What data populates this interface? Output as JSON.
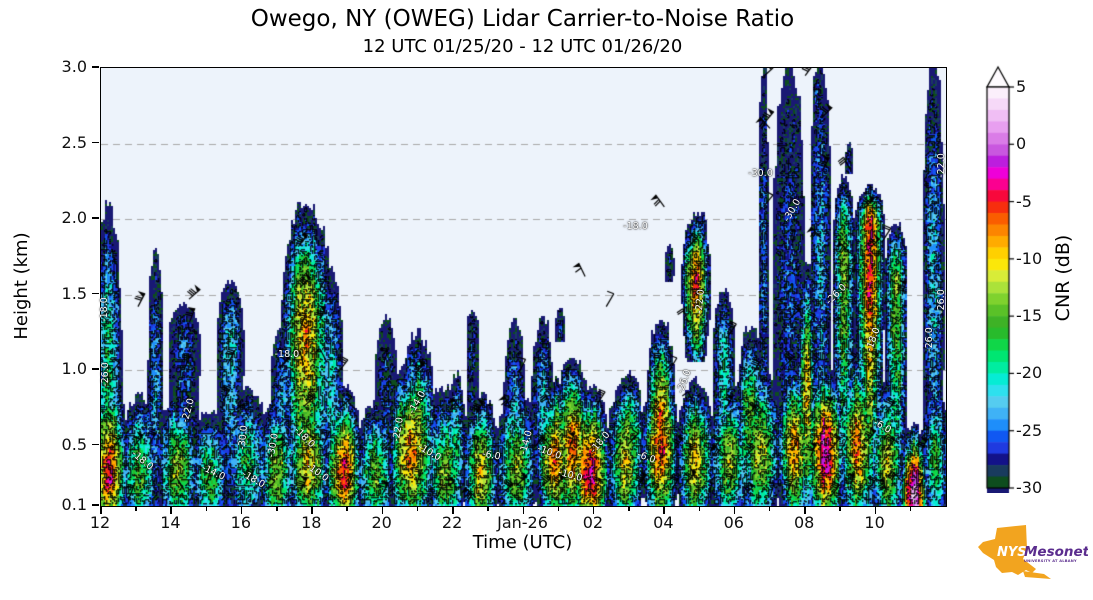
{
  "header": {
    "title": "Owego, NY (OWEG) Lidar Carrier-to-Noise Ratio",
    "subtitle": "12 UTC 01/25/20 - 12 UTC 01/26/20"
  },
  "axes": {
    "x": {
      "label": "Time (UTC)",
      "range_hours_from_start": [
        0,
        24
      ],
      "ticks": [
        {
          "t": 0,
          "label": "12"
        },
        {
          "t": 2,
          "label": "14"
        },
        {
          "t": 4,
          "label": "16"
        },
        {
          "t": 6,
          "label": "18"
        },
        {
          "t": 8,
          "label": "20"
        },
        {
          "t": 10,
          "label": "22"
        },
        {
          "t": 12,
          "label": "Jan-26"
        },
        {
          "t": 14,
          "label": "02"
        },
        {
          "t": 16,
          "label": "04"
        },
        {
          "t": 18,
          "label": "06"
        },
        {
          "t": 20,
          "label": "08"
        },
        {
          "t": 22,
          "label": "10"
        }
      ],
      "minor_ticks_every_hours": 1
    },
    "y": {
      "label": "Height (km)",
      "range_km": [
        0.1,
        3.0
      ],
      "ticks": [
        {
          "km": 3.0,
          "label": "3.0"
        },
        {
          "km": 2.5,
          "label": "2.5"
        },
        {
          "km": 2.0,
          "label": "2.0"
        },
        {
          "km": 1.5,
          "label": "1.5"
        },
        {
          "km": 1.0,
          "label": "1.0"
        },
        {
          "km": 0.5,
          "label": "0.5"
        },
        {
          "km": 0.1,
          "label": "0.1"
        }
      ],
      "gridlines_km": [
        0.5,
        1.0,
        1.5,
        2.0,
        2.5
      ]
    }
  },
  "colorbar": {
    "label": "CNR (dB)",
    "min": -30,
    "max": 5,
    "extend_max_arrow": true,
    "ticks": [
      5,
      0,
      -5,
      -10,
      -15,
      -20,
      -25,
      -30
    ]
  },
  "chart_data": {
    "type": "heatmap",
    "quantity": "Lidar carrier-to-noise ratio (dB) vs time and height, with wind barbs and labeled CNR contours",
    "background": "#edf3fb",
    "gridline_color": "#a8a8a8",
    "colormap": [
      {
        "v": -30,
        "c": "#191974"
      },
      {
        "v": -29,
        "c": "#0e4d1e"
      },
      {
        "v": -28,
        "c": "#193b5e"
      },
      {
        "v": -27,
        "c": "#131289"
      },
      {
        "v": -26,
        "c": "#1f3ae0"
      },
      {
        "v": -25,
        "c": "#1058f2"
      },
      {
        "v": -24,
        "c": "#1e8efa"
      },
      {
        "v": -23,
        "c": "#3fb2f6"
      },
      {
        "v": -22,
        "c": "#55ccf0"
      },
      {
        "v": -21,
        "c": "#2ee0ee"
      },
      {
        "v": -20,
        "c": "#06ecd4"
      },
      {
        "v": -19,
        "c": "#00eda0"
      },
      {
        "v": -18,
        "c": "#00e672"
      },
      {
        "v": -17,
        "c": "#10d648"
      },
      {
        "v": -16,
        "c": "#28bb2c"
      },
      {
        "v": -15,
        "c": "#3eb226"
      },
      {
        "v": -14,
        "c": "#5ac128"
      },
      {
        "v": -13,
        "c": "#7fd22e"
      },
      {
        "v": -12,
        "c": "#abe23a"
      },
      {
        "v": -11,
        "c": "#d8ec38"
      },
      {
        "v": -10,
        "c": "#fbe70a"
      },
      {
        "v": -9,
        "c": "#ffd000"
      },
      {
        "v": -8,
        "c": "#ffab00"
      },
      {
        "v": -7,
        "c": "#fc8500"
      },
      {
        "v": -6,
        "c": "#fa5d00"
      },
      {
        "v": -5,
        "c": "#f72e0e"
      },
      {
        "v": -4,
        "c": "#f8083c"
      },
      {
        "v": -3,
        "c": "#fb0090"
      },
      {
        "v": -2,
        "c": "#ee00d8"
      },
      {
        "v": -1,
        "c": "#bc1ede"
      },
      {
        "v": 0,
        "c": "#c957df"
      },
      {
        "v": 1,
        "c": "#da7ce7"
      },
      {
        "v": 2,
        "c": "#e89ff0"
      },
      {
        "v": 3,
        "c": "#f0bef4"
      },
      {
        "v": 4,
        "c": "#f6d9f8"
      },
      {
        "v": 5,
        "c": "#fbeffb"
      },
      {
        "v": 6,
        "c": "#fefbfe"
      }
    ],
    "features": [
      {
        "t": 0.25,
        "w": 0.45,
        "top": 0.95,
        "core": -3,
        "ch": 0.3
      },
      {
        "t": 1.1,
        "w": 0.5,
        "top": 0.8,
        "core": -14,
        "ch": 0.3
      },
      {
        "t": 2.2,
        "w": 0.55,
        "top": 0.8,
        "core": -12,
        "ch": 0.35
      },
      {
        "t": 3.1,
        "w": 0.5,
        "top": 0.7,
        "core": -15,
        "ch": 0.3
      },
      {
        "t": 4.15,
        "w": 0.55,
        "top": 0.85,
        "core": -17,
        "ch": 0.4
      },
      {
        "t": 5.0,
        "w": 0.5,
        "top": 0.8,
        "core": -12,
        "ch": 0.3
      },
      {
        "t": 5.9,
        "w": 0.55,
        "top": 0.9,
        "core": -9,
        "ch": 0.35
      },
      {
        "t": 6.9,
        "w": 0.5,
        "top": 0.85,
        "core": -4,
        "ch": 0.3
      },
      {
        "t": 7.8,
        "w": 0.5,
        "top": 0.75,
        "core": -14,
        "ch": 0.3
      },
      {
        "t": 8.8,
        "w": 0.6,
        "top": 1.0,
        "core": -7,
        "ch": 0.45
      },
      {
        "t": 9.8,
        "w": 0.5,
        "top": 0.85,
        "core": -13,
        "ch": 0.3
      },
      {
        "t": 10.8,
        "w": 0.5,
        "top": 0.8,
        "core": -10,
        "ch": 0.3
      },
      {
        "t": 11.8,
        "w": 0.55,
        "top": 0.85,
        "core": -12,
        "ch": 0.35
      },
      {
        "t": 12.9,
        "w": 0.55,
        "top": 0.9,
        "core": -6,
        "ch": 0.4
      },
      {
        "t": 13.9,
        "w": 0.55,
        "top": 0.85,
        "core": -2,
        "ch": 0.3
      },
      {
        "t": 14.9,
        "w": 0.5,
        "top": 0.9,
        "core": -10,
        "ch": 0.4
      },
      {
        "t": 15.9,
        "w": 0.5,
        "top": 0.95,
        "core": -5,
        "ch": 0.5
      },
      {
        "t": 16.9,
        "w": 0.5,
        "top": 0.9,
        "core": -9,
        "ch": 0.4
      },
      {
        "t": 17.85,
        "w": 0.5,
        "top": 0.9,
        "core": -12,
        "ch": 0.4
      },
      {
        "t": 18.75,
        "w": 0.5,
        "top": 1.0,
        "core": -10,
        "ch": 0.45
      },
      {
        "t": 19.7,
        "w": 0.45,
        "top": 1.0,
        "core": -7,
        "ch": 0.5
      },
      {
        "t": 20.6,
        "w": 0.5,
        "top": 1.0,
        "core": -1,
        "ch": 0.45
      },
      {
        "t": 21.5,
        "w": 0.5,
        "top": 1.05,
        "core": -6,
        "ch": 0.5
      },
      {
        "t": 22.35,
        "w": 0.45,
        "top": 0.9,
        "core": -11,
        "ch": 0.4
      },
      {
        "t": 23.1,
        "w": 0.4,
        "top": 0.6,
        "core": 3,
        "ch": 0.15
      },
      {
        "t": 23.7,
        "w": 0.35,
        "top": 0.9,
        "core": -16,
        "ch": 0.4
      },
      {
        "t": 0.22,
        "w": 0.35,
        "top": 2.02,
        "core": -17,
        "ch": 1.0
      },
      {
        "t": 1.55,
        "w": 0.2,
        "top": 1.78,
        "core": -22,
        "ch": 0.9
      },
      {
        "t": 2.35,
        "w": 0.4,
        "top": 1.42,
        "core": -25,
        "ch": 1.2
      },
      {
        "t": 3.7,
        "w": 0.35,
        "top": 1.56,
        "core": -21,
        "ch": 1.2
      },
      {
        "t": 5.15,
        "w": 0.3,
        "top": 1.28,
        "core": -22,
        "ch": 0.8
      },
      {
        "t": 5.85,
        "w": 0.65,
        "top": 2.05,
        "core": -8,
        "ch": 1.28
      },
      {
        "t": 6.55,
        "w": 0.3,
        "top": 1.62,
        "core": -20,
        "ch": 1.0
      },
      {
        "t": 8.1,
        "w": 0.28,
        "top": 1.32,
        "core": -26,
        "ch": 0.95
      },
      {
        "t": 9.0,
        "w": 0.5,
        "top": 1.2,
        "core": -11,
        "ch": 0.5
      },
      {
        "t": 10.1,
        "w": 0.25,
        "top": 0.95,
        "core": -18,
        "ch": 0.5
      },
      {
        "t": 10.55,
        "w": 0.16,
        "top": 1.38,
        "core": -27,
        "ch": 1.25
      },
      {
        "t": 11.75,
        "w": 0.28,
        "top": 1.3,
        "core": -22,
        "ch": 0.8
      },
      {
        "t": 12.55,
        "w": 0.28,
        "top": 1.32,
        "core": -21,
        "ch": 0.8
      },
      {
        "t": 13.4,
        "w": 0.45,
        "top": 1.05,
        "core": -5,
        "ch": 0.5
      },
      {
        "t": 15.0,
        "w": 0.4,
        "top": 0.95,
        "core": -12,
        "ch": 0.5
      },
      {
        "t": 15.9,
        "w": 0.4,
        "top": 1.3,
        "core": -6,
        "ch": 0.65
      },
      {
        "t": 16.9,
        "w": 0.38,
        "top": 2.0,
        "core": -5,
        "ch": 1.6,
        "b": 1.05
      },
      {
        "t": 17.7,
        "w": 0.28,
        "top": 1.5,
        "core": -19,
        "ch": 1.1
      },
      {
        "t": 18.45,
        "w": 0.35,
        "top": 1.25,
        "core": -14,
        "ch": 0.7
      },
      {
        "t": 18.82,
        "w": 0.13,
        "top": 3.0,
        "core": -24,
        "ch": 1.8
      },
      {
        "t": 19.55,
        "w": 0.42,
        "top": 3.0,
        "core": -25,
        "ch": 1.6
      },
      {
        "t": 20.05,
        "w": 0.22,
        "top": 1.66,
        "core": -8,
        "ch": 0.9
      },
      {
        "t": 20.45,
        "w": 0.28,
        "top": 3.0,
        "core": -22,
        "ch": 1.8
      },
      {
        "t": 21.1,
        "w": 0.28,
        "top": 2.25,
        "core": -13,
        "ch": 1.8
      },
      {
        "t": 21.85,
        "w": 0.38,
        "top": 2.2,
        "core": -4,
        "ch": 1.95
      },
      {
        "t": 22.6,
        "w": 0.3,
        "top": 1.95,
        "core": -13,
        "ch": 1.6
      },
      {
        "t": 23.65,
        "w": 0.28,
        "top": 3.0,
        "core": -21,
        "ch": 1.6
      },
      {
        "t": 16.15,
        "w": 0.12,
        "top": 1.82,
        "core": -26,
        "ch": 1.7,
        "b": 1.58
      },
      {
        "t": 17.1,
        "w": 0.1,
        "top": 2.0,
        "core": -25,
        "ch": 1.92,
        "b": 1.85
      },
      {
        "t": 21.25,
        "w": 0.1,
        "top": 2.45,
        "core": -26,
        "ch": 2.38,
        "b": 2.3
      },
      {
        "t": 20.32,
        "w": 0.1,
        "top": 2.92,
        "core": -25,
        "ch": 2.84,
        "b": 2.75
      },
      {
        "t": 13.05,
        "w": 0.12,
        "top": 1.36,
        "core": -26,
        "ch": 1.28,
        "b": 1.18
      }
    ],
    "contour_labels": [
      {
        "t": 0.12,
        "km": 1.4,
        "text": "-18.0",
        "rot": -90
      },
      {
        "t": 0.15,
        "km": 0.97,
        "text": "-26.0",
        "rot": -90
      },
      {
        "t": 1.2,
        "km": 0.4,
        "text": "-18.0",
        "rot": 40
      },
      {
        "t": 2.5,
        "km": 0.73,
        "text": "-22.0",
        "rot": -75
      },
      {
        "t": 3.2,
        "km": 0.32,
        "text": "-14.0",
        "rot": 25
      },
      {
        "t": 4.05,
        "km": 0.55,
        "text": "-30.0",
        "rot": -85
      },
      {
        "t": 4.35,
        "km": 0.27,
        "text": "-18.0",
        "rot": 30
      },
      {
        "t": 5.3,
        "km": 1.1,
        "text": "-18.0",
        "rot": 0
      },
      {
        "t": 4.92,
        "km": 0.5,
        "text": "-30.0",
        "rot": -80
      },
      {
        "t": 5.8,
        "km": 0.55,
        "text": "-18.0",
        "rot": 45
      },
      {
        "t": 6.15,
        "km": 0.32,
        "text": "-10.0",
        "rot": 35
      },
      {
        "t": 8.45,
        "km": 0.6,
        "text": "-22.0",
        "rot": -80
      },
      {
        "t": 9.35,
        "km": 0.45,
        "text": "-10.0",
        "rot": 30
      },
      {
        "t": 9.0,
        "km": 0.78,
        "text": "-14.0",
        "rot": -60
      },
      {
        "t": 11.2,
        "km": 0.43,
        "text": "-6.0",
        "rot": 10
      },
      {
        "t": 12.1,
        "km": 0.52,
        "text": "-14.0",
        "rot": -75
      },
      {
        "t": 12.75,
        "km": 0.45,
        "text": "-10.0",
        "rot": 20
      },
      {
        "t": 13.35,
        "km": 0.3,
        "text": "-10.0",
        "rot": 15
      },
      {
        "t": 14.2,
        "km": 0.52,
        "text": "-18.0",
        "rot": -50
      },
      {
        "t": 15.2,
        "km": 1.95,
        "text": "-18.0",
        "rot": 0
      },
      {
        "t": 15.6,
        "km": 0.42,
        "text": "-6.0",
        "rot": 20
      },
      {
        "t": 17.05,
        "km": 1.45,
        "text": "-22.0",
        "rot": -85
      },
      {
        "t": 16.6,
        "km": 0.92,
        "text": "-26.0",
        "rot": -70
      },
      {
        "t": 18.75,
        "km": 2.3,
        "text": "-30.0",
        "rot": 0
      },
      {
        "t": 19.65,
        "km": 2.05,
        "text": "-30.0",
        "rot": -60
      },
      {
        "t": 20.9,
        "km": 1.5,
        "text": "-26.0",
        "rot": -45
      },
      {
        "t": 21.95,
        "km": 1.2,
        "text": "-18.0",
        "rot": -70
      },
      {
        "t": 22.3,
        "km": 0.62,
        "text": "-6.0",
        "rot": 30
      },
      {
        "t": 23.55,
        "km": 1.2,
        "text": "-26.0",
        "rot": -90
      },
      {
        "t": 23.88,
        "km": 2.35,
        "text": "-22.0",
        "rot": -90
      },
      {
        "t": 23.88,
        "km": 1.45,
        "text": "-26.0",
        "rot": -90
      }
    ],
    "isolated_barbs": [
      {
        "t": 1.05,
        "km": 1.42,
        "flag": true
      },
      {
        "t": 2.5,
        "km": 1.47,
        "flag": false
      },
      {
        "t": 13.75,
        "km": 1.62,
        "flag": true
      },
      {
        "t": 14.35,
        "km": 1.42,
        "flag": false
      },
      {
        "t": 16.0,
        "km": 2.08,
        "flag": false
      },
      {
        "t": 19.0,
        "km": 2.6,
        "flag": false
      },
      {
        "t": 18.85,
        "km": 2.95,
        "flag": true
      },
      {
        "t": 20.0,
        "km": 2.95,
        "flag": true
      }
    ]
  },
  "logo": {
    "nys": "NYS",
    "mesonet": "Mesonet",
    "tagline": "UNIVERSITY AT ALBANY",
    "orange": "#f2a41f",
    "purple": "#5b2d8e"
  }
}
